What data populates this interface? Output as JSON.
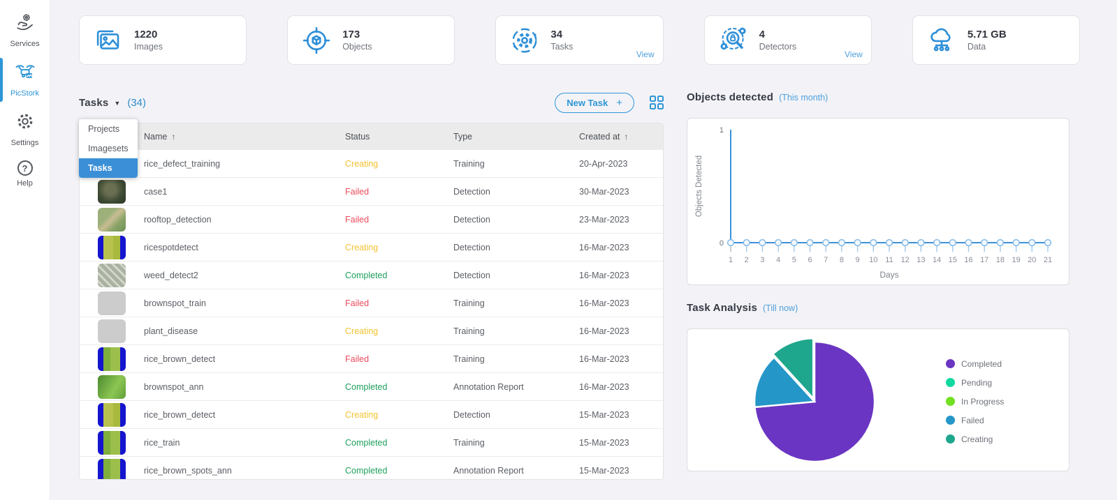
{
  "sidebar": {
    "items": [
      {
        "label": "Services",
        "icon": "hand-gear-icon",
        "active": false
      },
      {
        "label": "PicStork",
        "icon": "drone-icon",
        "active": true
      },
      {
        "label": "Settings",
        "icon": "gear-icon",
        "active": false
      },
      {
        "label": "Help",
        "icon": "help-icon",
        "active": false
      }
    ]
  },
  "stats": [
    {
      "value": "1220",
      "label": "Images",
      "icon": "images-icon"
    },
    {
      "value": "173",
      "label": "Objects",
      "icon": "objects-icon"
    },
    {
      "value": "34",
      "label": "Tasks",
      "icon": "tasks-icon",
      "view": "View"
    },
    {
      "value": "4",
      "label": "Detectors",
      "icon": "detectors-icon",
      "view": "View"
    },
    {
      "value": "5.71 GB",
      "label": "Data",
      "icon": "data-cloud-icon"
    }
  ],
  "tasks_panel": {
    "title": "Tasks",
    "count": "(34)",
    "new_task_label": "New Task",
    "new_task_plus": "+",
    "dropdown": {
      "items": [
        "Projects",
        "Imagesets",
        "Tasks"
      ],
      "selected": "Tasks"
    },
    "table": {
      "headers": {
        "name": "Name",
        "status": "Status",
        "type": "Type",
        "created": "Created at",
        "sort_arrow": "↑"
      },
      "rows": [
        {
          "name": "rice_defect_training",
          "status": "Creating",
          "type": "Training",
          "created": "20-Apr-2023",
          "thumb": "rice-blue-green"
        },
        {
          "name": "case1",
          "status": "Failed",
          "type": "Detection",
          "created": "30-Mar-2023",
          "thumb": "aerial-dark"
        },
        {
          "name": "rooftop_detection",
          "status": "Failed",
          "type": "Detection",
          "created": "23-Mar-2023",
          "thumb": "aerial-field"
        },
        {
          "name": "ricespotdetect",
          "status": "Creating",
          "type": "Detection",
          "created": "16-Mar-2023",
          "thumb": "rice-blue-yellow"
        },
        {
          "name": "weed_detect2",
          "status": "Completed",
          "type": "Detection",
          "created": "16-Mar-2023",
          "thumb": "weed-gray"
        },
        {
          "name": "brownspot_train",
          "status": "Failed",
          "type": "Training",
          "created": "16-Mar-2023",
          "thumb": "leaves"
        },
        {
          "name": "plant_disease",
          "status": "Creating",
          "type": "Training",
          "created": "16-Mar-2023",
          "thumb": "leaves"
        },
        {
          "name": "rice_brown_detect",
          "status": "Failed",
          "type": "Training",
          "created": "16-Mar-2023",
          "thumb": "rice-blue-green"
        },
        {
          "name": "brownspot_ann",
          "status": "Completed",
          "type": "Annotation Report",
          "created": "16-Mar-2023",
          "thumb": "leaf-macro"
        },
        {
          "name": "rice_brown_detect",
          "status": "Creating",
          "type": "Detection",
          "created": "15-Mar-2023",
          "thumb": "rice-blue-yellow"
        },
        {
          "name": "rice_train",
          "status": "Completed",
          "type": "Training",
          "created": "15-Mar-2023",
          "thumb": "rice-blue-green"
        },
        {
          "name": "rice_brown_spots_ann",
          "status": "Completed",
          "type": "Annotation Report",
          "created": "15-Mar-2023",
          "thumb": "rice-blue-green"
        }
      ]
    }
  },
  "charts": {
    "objects_detected": {
      "title": "Objects detected",
      "subtitle": "(This month)"
    },
    "task_analysis": {
      "title": "Task Analysis",
      "subtitle": "(Till now)"
    }
  },
  "chart_data": [
    {
      "type": "line",
      "title": "Objects detected (This month)",
      "x": [
        1,
        2,
        3,
        4,
        5,
        6,
        7,
        8,
        9,
        10,
        11,
        12,
        13,
        14,
        15,
        16,
        17,
        18,
        19,
        20,
        21
      ],
      "values": [
        0,
        0,
        0,
        0,
        0,
        0,
        0,
        0,
        0,
        0,
        0,
        0,
        0,
        0,
        0,
        0,
        0,
        0,
        0,
        0,
        0
      ],
      "xlabel": "Days",
      "ylabel": "Objects Detected",
      "ylim": [
        0,
        1
      ],
      "yticks": [
        0,
        1
      ],
      "line_color": "#3d91d6",
      "marker_fill": "#f3f9fe",
      "marker_stroke": "#85b9e6",
      "grid": false
    },
    {
      "type": "pie",
      "title": "Task Analysis (Till now)",
      "labels": [
        "Completed",
        "Pending",
        "In Progress",
        "Failed",
        "Creating"
      ],
      "values": [
        25,
        0,
        0,
        5,
        4
      ],
      "total_tasks": 34,
      "colors": [
        "#6a35c2",
        "#10d9a0",
        "#71e022",
        "#2596c8",
        "#1fa78d"
      ],
      "legend_position": "right",
      "exploded": "Creating"
    }
  ],
  "colors": {
    "accent_blue": "#2d96d6",
    "link_blue": "#4d9fdc",
    "status_creating": "#f2c230",
    "status_failed": "#ed4c5c",
    "status_completed": "#1fa05c"
  }
}
